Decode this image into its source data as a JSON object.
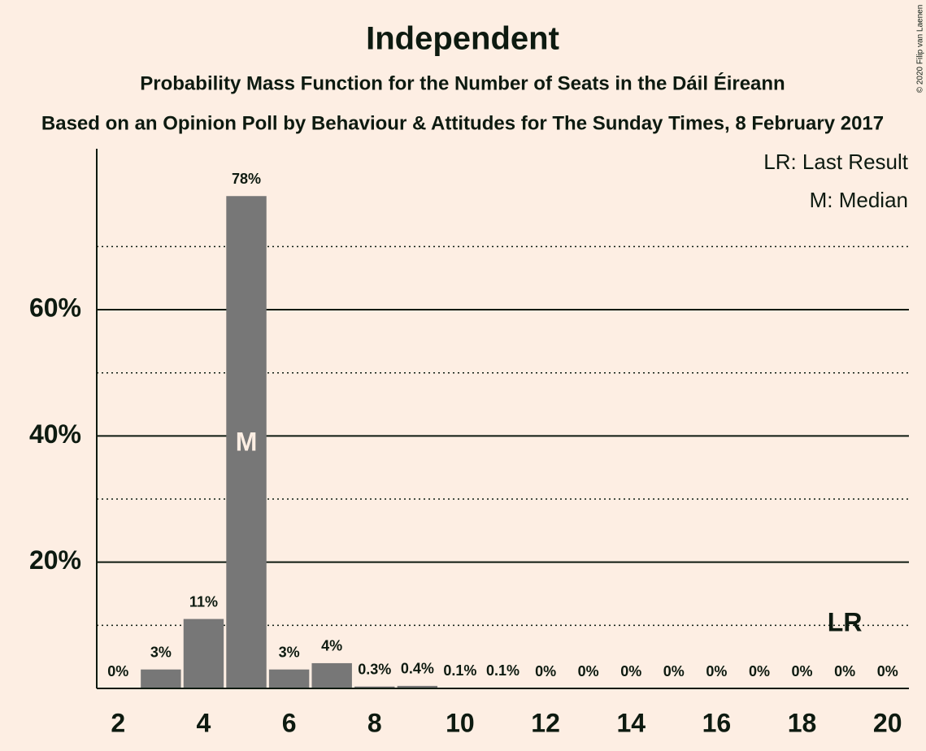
{
  "chart_data": {
    "type": "bar",
    "title": "Independent",
    "subtitle": "Probability Mass Function for the Number of Seats in the Dáil Éireann",
    "subtitle2": "Based on an Opinion Poll by Behaviour & Attitudes for The Sunday Times, 8 February 2017",
    "legend": [
      "LR: Last Result",
      "M: Median"
    ],
    "copyright": "© 2020 Filip van Laenen",
    "x": [
      2,
      3,
      4,
      5,
      6,
      7,
      8,
      9,
      10,
      11,
      12,
      13,
      14,
      15,
      16,
      17,
      18,
      19,
      20
    ],
    "values": [
      0,
      3,
      11,
      78,
      3,
      4,
      0.3,
      0.4,
      0.1,
      0.1,
      0,
      0,
      0,
      0,
      0,
      0,
      0,
      0,
      0
    ],
    "value_labels": [
      "0%",
      "3%",
      "11%",
      "78%",
      "3%",
      "4%",
      "0.3%",
      "0.4%",
      "0.1%",
      "0.1%",
      "0%",
      "0%",
      "0%",
      "0%",
      "0%",
      "0%",
      "0%",
      "0%",
      "0%"
    ],
    "color": "#777777",
    "median": {
      "x": 5,
      "label": "M"
    },
    "last_result": {
      "x": 19,
      "label": "LR"
    },
    "xlim": [
      1.5,
      20.5
    ],
    "xticks": [
      2,
      4,
      6,
      8,
      10,
      12,
      14,
      16,
      18,
      20
    ],
    "ylim": [
      0,
      85.5
    ],
    "yticks": [
      {
        "value": 20,
        "label": "20%"
      },
      {
        "value": 40,
        "label": "40%"
      },
      {
        "value": 60,
        "label": "60%"
      }
    ],
    "minor_grid": [
      10,
      30,
      50,
      70
    ],
    "grid": true
  }
}
